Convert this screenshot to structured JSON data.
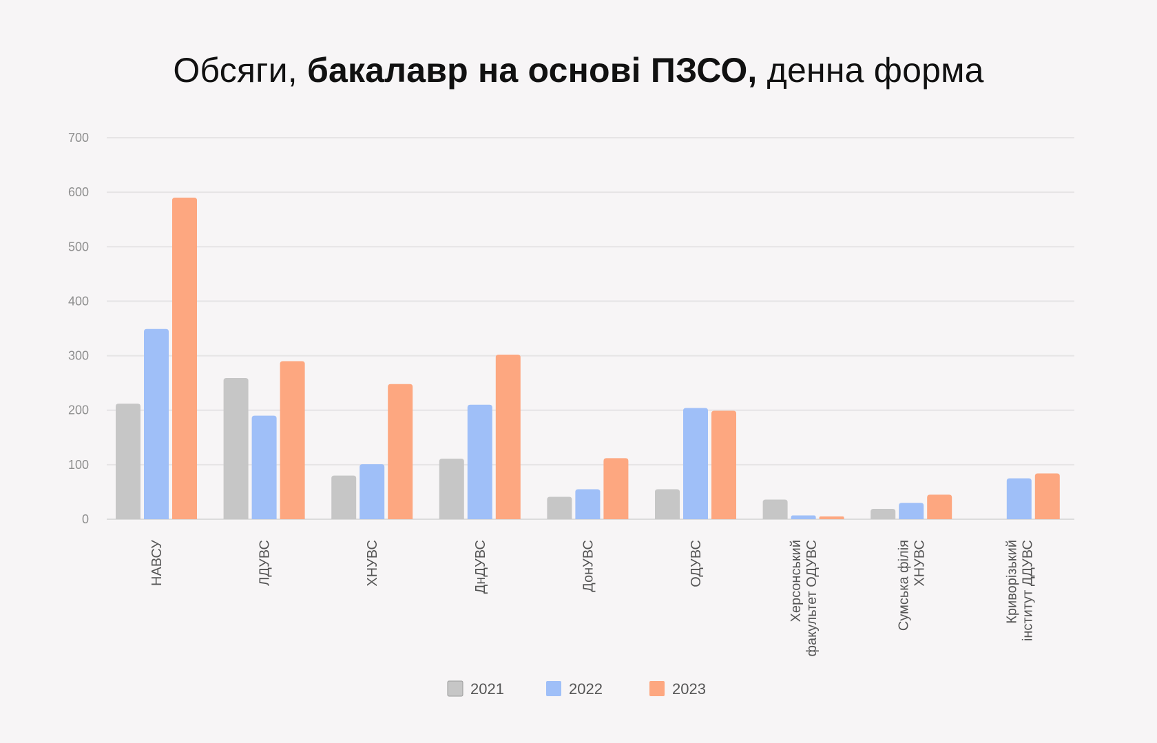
{
  "title": {
    "part1": "Обсяги,",
    "part2": "бакалавр на основі ПЗСО,",
    "part3": "денна форма"
  },
  "chart_data": {
    "type": "bar",
    "categories": [
      [
        "НАВСУ"
      ],
      [
        "ЛДУВС"
      ],
      [
        "ХНУВС"
      ],
      [
        "ДнДУВС"
      ],
      [
        "ДонУВС"
      ],
      [
        "ОДУВС"
      ],
      [
        "Херсонський",
        "факультет ОДУВС"
      ],
      [
        "Сумська філія",
        "ХНУВС"
      ],
      [
        "Криворізький",
        "інститут ДДУВС"
      ]
    ],
    "series": [
      {
        "name": "2021",
        "color": "#c6c6c6",
        "values": [
          212,
          259,
          80,
          111,
          41,
          55,
          36,
          19,
          0
        ]
      },
      {
        "name": "2022",
        "color": "#9fbff8",
        "values": [
          349,
          190,
          101,
          210,
          55,
          204,
          7,
          30,
          75
        ]
      },
      {
        "name": "2023",
        "color": "#fda780",
        "values": [
          590,
          290,
          248,
          302,
          112,
          199,
          5,
          45,
          84
        ]
      }
    ],
    "ylim": [
      0,
      700
    ],
    "yticks": [
      0,
      100,
      200,
      300,
      400,
      500,
      600,
      700
    ],
    "grid": true,
    "legend": "bottom-center"
  }
}
